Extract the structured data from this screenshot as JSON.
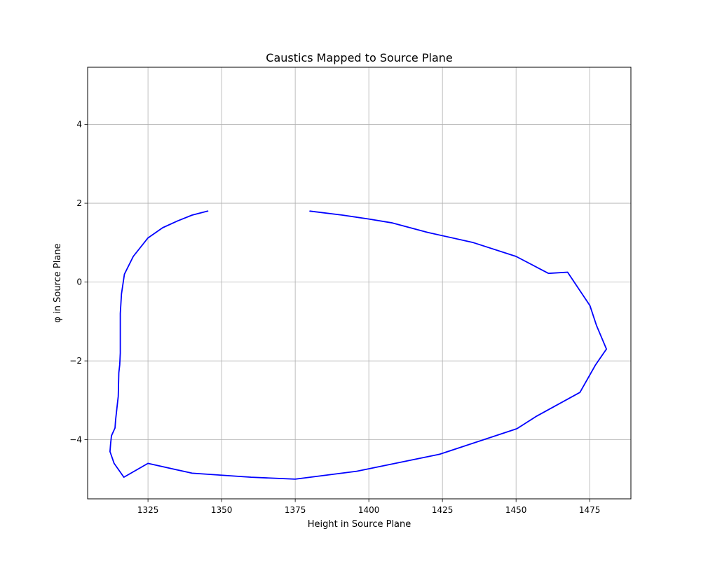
{
  "chart_data": {
    "type": "line",
    "title": "Caustics Mapped to Source Plane",
    "xlabel": "Height in Source Plane",
    "ylabel": "φ in Source Plane",
    "xlim": [
      1304.5,
      1489
    ],
    "ylim": [
      -5.5,
      5.45
    ],
    "x_ticks": [
      1325,
      1350,
      1375,
      1400,
      1425,
      1450,
      1475
    ],
    "x_tick_labels": [
      "1325",
      "1350",
      "1375",
      "1400",
      "1425",
      "1450",
      "1475"
    ],
    "y_ticks": [
      -4,
      -2,
      0,
      2,
      4
    ],
    "y_tick_labels": [
      "−4",
      "−2",
      "0",
      "2",
      "4"
    ],
    "grid": true,
    "legend": null,
    "color": "#0000ff",
    "series": [
      {
        "x": [
          1345.3,
          1340,
          1335,
          1330,
          1325,
          1320,
          1317,
          1316,
          1315.6,
          1315.6,
          1315.6,
          1315.4,
          1315.1,
          1314.9,
          1314.6,
          1314,
          1313.8,
          1312.6,
          1312.3,
          1312.1,
          1313.5,
          1316.8,
          1325,
          1340,
          1360,
          1375,
          1395.9,
          1424,
          1450.3,
          1457,
          1471.7,
          1477,
          1480.7,
          1477.3,
          1475.1,
          1467.5,
          1461,
          1450,
          1435.5,
          1420,
          1408,
          1400,
          1391,
          1380
        ],
        "y": [
          1.8,
          1.7,
          1.55,
          1.38,
          1.12,
          0.65,
          0.2,
          -0.3,
          -0.8,
          -1.3,
          -1.8,
          -2.1,
          -2.3,
          -2.9,
          -3.1,
          -3.5,
          -3.7,
          -3.9,
          -4.1,
          -4.3,
          -4.6,
          -4.95,
          -4.6,
          -4.85,
          -4.95,
          -5.0,
          -4.8,
          -4.37,
          -3.72,
          -3.4,
          -2.8,
          -2.1,
          -1.7,
          -1.1,
          -0.6,
          0.25,
          0.22,
          0.65,
          1.0,
          1.26,
          1.5,
          1.6,
          1.7,
          1.8
        ]
      }
    ],
    "series_note_removed": true
  }
}
